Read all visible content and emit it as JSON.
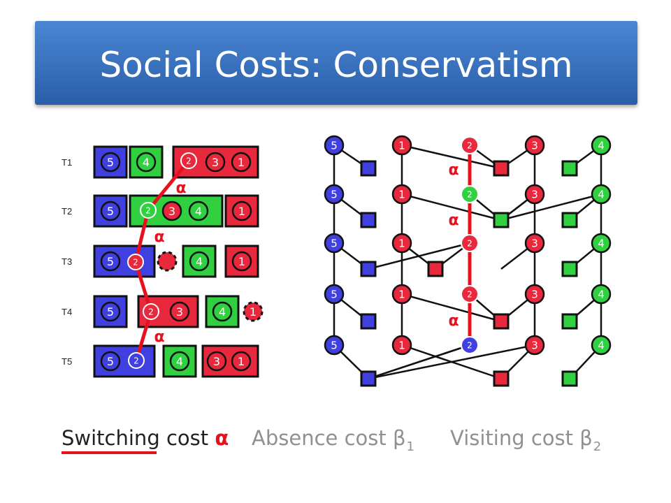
{
  "title": "Social Costs: Conservatism",
  "row_labels": [
    "T1",
    "T2",
    "T3",
    "T4",
    "T5"
  ],
  "node_labels": {
    "blue": "5",
    "red_a": "1",
    "red_b": "3",
    "green": "4",
    "actor": "2"
  },
  "alpha": "α",
  "captions": {
    "switching_word": "Switching",
    "switching_rest": "cost",
    "switching_symbol": "α",
    "absence": "Absence cost β",
    "absence_sub": "1",
    "visiting": "Visiting cost β",
    "visiting_sub": "2"
  },
  "colors": {
    "blue": "#4040e0",
    "red": "#e8283c",
    "green": "#30d040",
    "accent": "#e8101c",
    "banner": "#3a72c4",
    "muted": "#909090"
  }
}
